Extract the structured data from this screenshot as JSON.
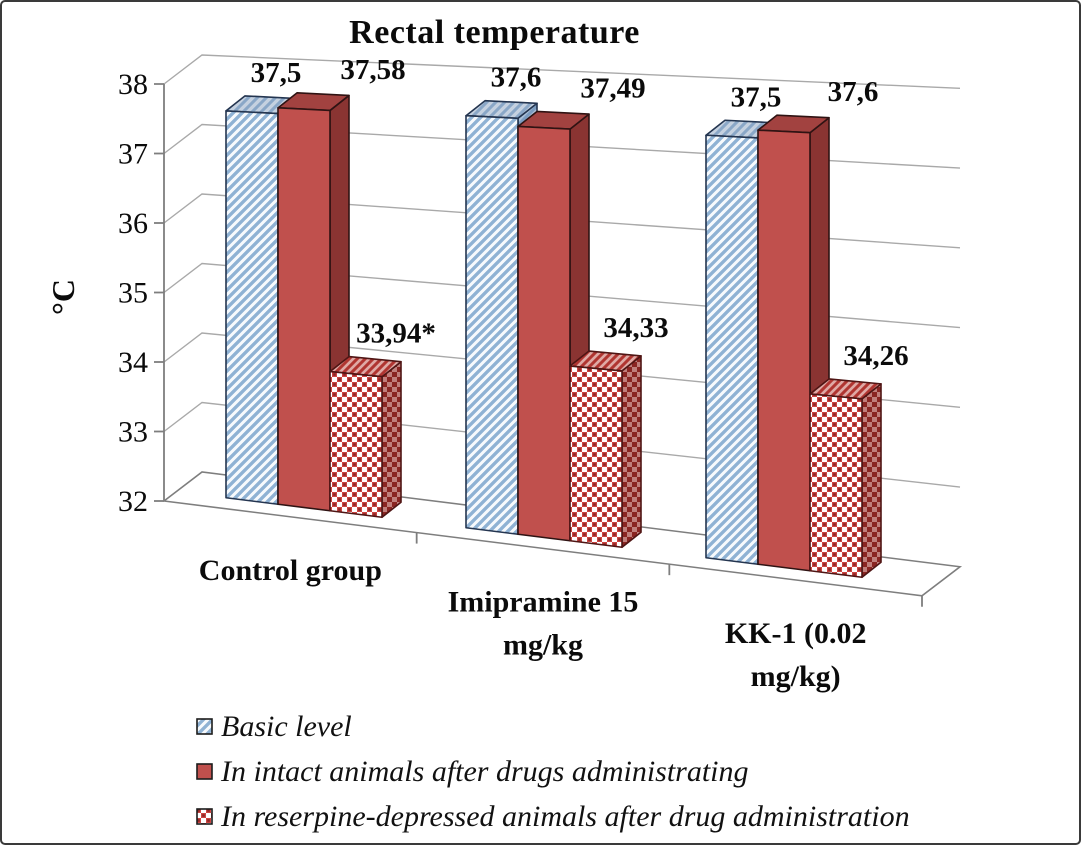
{
  "chart_data": {
    "type": "bar",
    "projection": "3d-column",
    "title": "Rectal temperature",
    "ylabel": "°C",
    "ylim": [
      32,
      38
    ],
    "yticks": [
      32,
      33,
      34,
      35,
      36,
      37,
      38
    ],
    "grid": true,
    "legend_position": "bottom-left",
    "categories": [
      "Control group",
      "Imipramine 15 mg/kg",
      "KK-1 (0.02 mg/kg)"
    ],
    "category_label_lines": [
      [
        "Control group"
      ],
      [
        "Imipramine 15",
        "mg/kg"
      ],
      [
        "KK-1 (0.02",
        "mg/kg)"
      ]
    ],
    "series": [
      {
        "name": "Basic level",
        "pattern": "blue-hatch",
        "values": [
          37.5,
          37.6,
          37.5
        ],
        "point_labels": [
          "37,5",
          "37,6",
          "37,5"
        ]
      },
      {
        "name": "In intact animals after drugs administrating",
        "pattern": "red-solid",
        "values": [
          37.58,
          37.49,
          37.6
        ],
        "point_labels": [
          "37,58",
          "37,49",
          "37,6"
        ]
      },
      {
        "name": "In reserpine-depressed animals after drug administration",
        "pattern": "red-checker",
        "values": [
          33.94,
          34.33,
          34.26
        ],
        "point_labels": [
          "33,94*",
          "34,33",
          "34,26"
        ]
      }
    ],
    "colors": {
      "blue_hatch_bg": "#f7fafd",
      "blue_hatch_stripe": "#8fb2d4",
      "blue_top_bg": "#c5d1e0",
      "blue_top_stripe": "#8aa7c7",
      "blue_side_bg": "#aabfd6",
      "blue_side_stripe": "#7b9cc0",
      "blue_stroke": "#243550",
      "red_front": "#c0504d",
      "red_top": "#a24240",
      "red_side": "#8a3432",
      "red_stroke": "#2f1313",
      "checker_bg": "#ffffff",
      "checker_red": "#cd4542",
      "checker_dark": "#8e2624",
      "checker_top_bg": "#dfa9a5",
      "checker_top_stripe": "#b03531",
      "checker_side_bg": "#c07f7c",
      "checker_side_sq": "#8a2522",
      "checker_stroke": "#4f1514",
      "gridline": "#a9a9a9",
      "axis": "#7e7e7e",
      "text": "#0b0b0b",
      "frame_border": "#3a3a3a"
    }
  }
}
